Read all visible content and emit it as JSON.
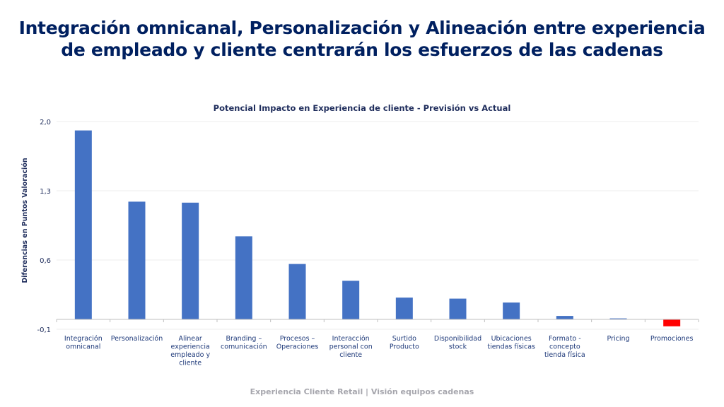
{
  "page": {
    "title_lines": [
      "Integración omnicanal, Personalización y Alineación entre experiencia",
      "de empleado y cliente centrarán los esfuerzos de las cadenas"
    ],
    "footer": "Experiencia Cliente Retail | Visión equipos cadenas"
  },
  "colors": {
    "positive_bar": "#4472c4",
    "negative_bar": "#ff0000",
    "title": "#002060",
    "text": "#1f2d5c",
    "footer": "#a6a6ad"
  },
  "chart_data": {
    "type": "bar",
    "title": "Potencial Impacto en Experiencia de cliente - Previsión vs Actual",
    "xlabel": "",
    "ylabel": "Diferencias en Puntos Valoración",
    "ylim": [
      -0.1,
      2.0
    ],
    "yticks": [
      2.0,
      1.3,
      0.6,
      -0.1
    ],
    "ytick_labels": [
      "2,0",
      "1,3",
      "0,6",
      "-0,1"
    ],
    "grid": true,
    "legend": "none",
    "categories": [
      [
        "Integración",
        "omnicanal"
      ],
      [
        "Personalización"
      ],
      [
        "Alinear",
        "experiencia",
        "empleado y",
        "cliente"
      ],
      [
        "Branding –",
        "comunicación"
      ],
      [
        "Procesos –",
        "Operaciones"
      ],
      [
        "Interacción",
        "personal con",
        "cliente"
      ],
      [
        "Surtido",
        "Producto"
      ],
      [
        "Disponibilidad",
        "stock"
      ],
      [
        "Ubicaciones",
        "tiendas físicas"
      ],
      [
        "Formato -",
        "concepto",
        "tienda física"
      ],
      [
        "Pricing"
      ],
      [
        "Promociones"
      ]
    ],
    "values": [
      1.91,
      1.19,
      1.18,
      0.84,
      0.56,
      0.39,
      0.22,
      0.21,
      0.17,
      0.035,
      0.01,
      -0.07
    ]
  }
}
